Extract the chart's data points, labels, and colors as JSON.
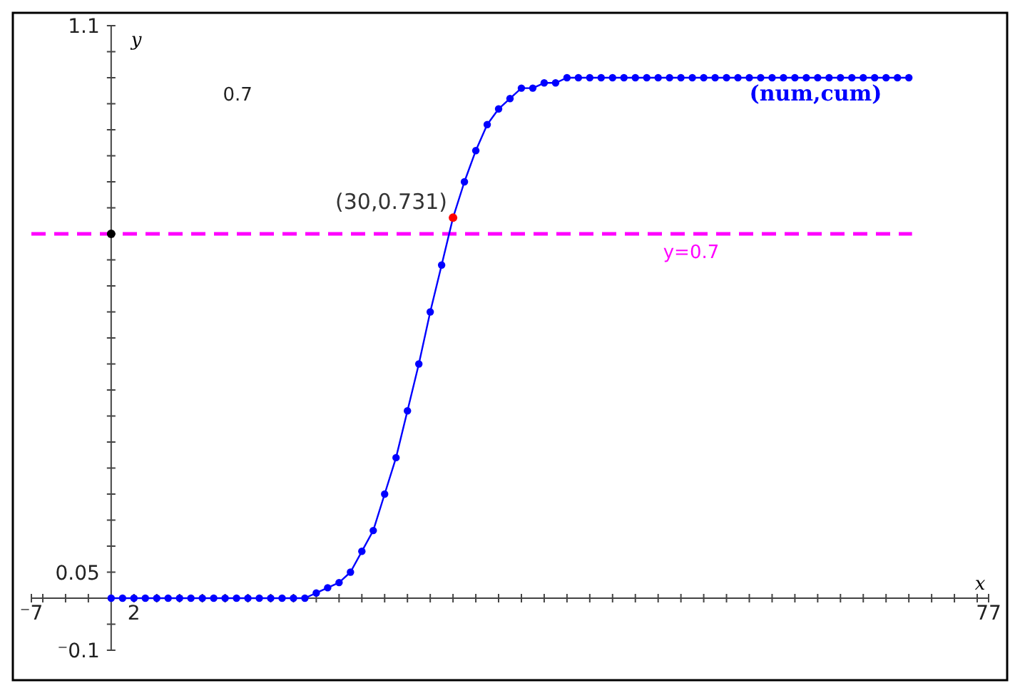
{
  "chart_data": {
    "type": "scatter",
    "xlabel": "x",
    "ylabel": "y",
    "xlim": [
      -7,
      77
    ],
    "ylim": [
      -0.1,
      1.1
    ],
    "xticks": [
      {
        "value": -7,
        "label": "⁻7"
      },
      {
        "value": -6,
        "label": null
      },
      {
        "value": -4,
        "label": null
      },
      {
        "value": -2,
        "label": null
      },
      {
        "value": 2,
        "label": "2"
      },
      {
        "value": 4,
        "label": null
      },
      {
        "value": 6,
        "label": null
      },
      {
        "value": 8,
        "label": null
      },
      {
        "value": 10,
        "label": null
      },
      {
        "value": 12,
        "label": null
      },
      {
        "value": 14,
        "label": null
      },
      {
        "value": 16,
        "label": null
      },
      {
        "value": 18,
        "label": null
      },
      {
        "value": 20,
        "label": null
      },
      {
        "value": 22,
        "label": null
      },
      {
        "value": 24,
        "label": null
      },
      {
        "value": 26,
        "label": null
      },
      {
        "value": 28,
        "label": null
      },
      {
        "value": 30,
        "label": null
      },
      {
        "value": 32,
        "label": null
      },
      {
        "value": 34,
        "label": null
      },
      {
        "value": 36,
        "label": null
      },
      {
        "value": 38,
        "label": null
      },
      {
        "value": 40,
        "label": null
      },
      {
        "value": 42,
        "label": null
      },
      {
        "value": 44,
        "label": null
      },
      {
        "value": 46,
        "label": null
      },
      {
        "value": 48,
        "label": null
      },
      {
        "value": 50,
        "label": null
      },
      {
        "value": 52,
        "label": null
      },
      {
        "value": 54,
        "label": null
      },
      {
        "value": 56,
        "label": null
      },
      {
        "value": 58,
        "label": null
      },
      {
        "value": 60,
        "label": null
      },
      {
        "value": 62,
        "label": null
      },
      {
        "value": 64,
        "label": null
      },
      {
        "value": 66,
        "label": null
      },
      {
        "value": 68,
        "label": null
      },
      {
        "value": 70,
        "label": null
      },
      {
        "value": 72,
        "label": null
      },
      {
        "value": 74,
        "label": null
      },
      {
        "value": 76,
        "label": null
      },
      {
        "value": 77,
        "label": "77"
      }
    ],
    "yticks": [
      {
        "value": -0.1,
        "label": "⁻0.1"
      },
      {
        "value": -0.05,
        "label": null
      },
      {
        "value": 0.05,
        "label": "0.05"
      },
      {
        "value": 0.1,
        "label": null
      },
      {
        "value": 0.15,
        "label": null
      },
      {
        "value": 0.2,
        "label": null
      },
      {
        "value": 0.25,
        "label": null
      },
      {
        "value": 0.3,
        "label": null
      },
      {
        "value": 0.35,
        "label": null
      },
      {
        "value": 0.4,
        "label": null
      },
      {
        "value": 0.45,
        "label": null
      },
      {
        "value": 0.5,
        "label": null
      },
      {
        "value": 0.55,
        "label": null
      },
      {
        "value": 0.6,
        "label": null
      },
      {
        "value": 0.65,
        "label": null
      },
      {
        "value": 0.7,
        "label": null
      },
      {
        "value": 0.75,
        "label": null
      },
      {
        "value": 0.8,
        "label": null
      },
      {
        "value": 0.85,
        "label": null
      },
      {
        "value": 0.9,
        "label": null
      },
      {
        "value": 0.95,
        "label": null
      },
      {
        "value": 1,
        "label": null
      },
      {
        "value": 1.05,
        "label": null
      },
      {
        "value": 1.1,
        "label": "1.1"
      }
    ],
    "grid": false,
    "legend": false,
    "marker": "circle",
    "line_style": "solid",
    "series": [
      {
        "name": "(num,cum)",
        "type": "line",
        "color": "#0000ff",
        "x": [
          0,
          1,
          2,
          3,
          4,
          5,
          6,
          7,
          8,
          9,
          10,
          11,
          12,
          13,
          14,
          15,
          16,
          17,
          18,
          19,
          20,
          21,
          22,
          23,
          24,
          25,
          26,
          27,
          28,
          29,
          30,
          31,
          32,
          33,
          34,
          35,
          36,
          37,
          38,
          39,
          40,
          41,
          42,
          43,
          44,
          45,
          46,
          47,
          48,
          49,
          50,
          51,
          52,
          53,
          54,
          55,
          56,
          57,
          58,
          59,
          60,
          61,
          62,
          63,
          64,
          65,
          66,
          67,
          68,
          69,
          70
        ],
        "values": [
          0,
          0,
          0,
          0,
          0,
          0,
          0,
          0,
          0,
          0,
          0,
          0,
          0,
          0,
          0,
          0,
          0,
          0,
          0.01,
          0.02,
          0.03,
          0.05,
          0.09,
          0.13,
          0.2,
          0.27,
          0.36,
          0.45,
          0.55,
          0.64,
          0.731,
          0.8,
          0.86,
          0.91,
          0.94,
          0.96,
          0.98,
          0.98,
          0.99,
          0.99,
          1,
          1,
          1,
          1,
          1,
          1,
          1,
          1,
          1,
          1,
          1,
          1,
          1,
          1,
          1,
          1,
          1,
          1,
          1,
          1,
          1,
          1,
          1,
          1,
          1,
          1,
          1,
          1,
          1,
          1,
          1
        ]
      },
      {
        "color": "#ff0000",
        "x": [
          30
        ],
        "values": [
          0.731
        ]
      },
      {
        "color": "#000000",
        "x": [
          0
        ],
        "values": [
          0.7
        ]
      }
    ],
    "ref_lines": [
      {
        "axis": "y",
        "value": 0.7,
        "label": "y=0.7",
        "color": "#ff00ff",
        "line_style": "dashed"
      }
    ],
    "annotations": [
      {
        "text": "(30,0.731)",
        "x": 30,
        "y": 0.731
      },
      "0.7"
    ]
  }
}
